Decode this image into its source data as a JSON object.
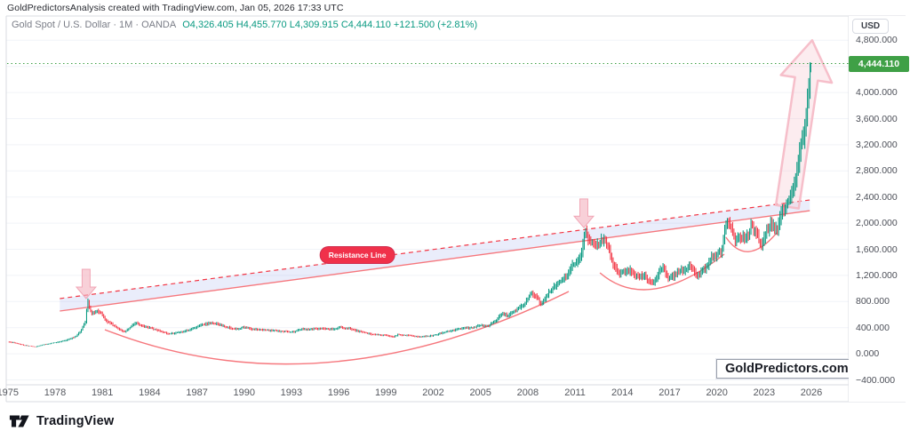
{
  "attribution": "GoldPredictorsAnalysis created with TradingView.com, Jan 05, 2026 17:33 UTC",
  "legend": {
    "symbol": "Gold Spot / U.S. Dollar",
    "interval": "1M",
    "exchange": "OANDA",
    "symbol_line": "Gold Spot / U.S. Dollar · 1M · OANDA",
    "values_text": "O4,326.405  H4,455.770  L4,309.915  C4,444.110  +121.500 (+2.81%)"
  },
  "axis": {
    "currency": "USD",
    "last_price_label": "4,444.110",
    "y_ticks": [
      {
        "label": "4,800.000",
        "value": 4800
      },
      {
        "label": "4,400.000",
        "value": 4400,
        "hidden": true
      },
      {
        "label": "4,000.000",
        "value": 4000
      },
      {
        "label": "3,600.000",
        "value": 3600
      },
      {
        "label": "3,200.000",
        "value": 3200
      },
      {
        "label": "2,800.000",
        "value": 2800
      },
      {
        "label": "2,400.000",
        "value": 2400
      },
      {
        "label": "2,000.000",
        "value": 2000
      },
      {
        "label": "1,600.000",
        "value": 1600
      },
      {
        "label": "1,200.000",
        "value": 1200
      },
      {
        "label": "800.000",
        "value": 800
      },
      {
        "label": "400.000",
        "value": 400
      },
      {
        "label": "0.000",
        "value": 0
      },
      {
        "label": "−400.000",
        "value": -400
      }
    ],
    "x_ticks": [
      {
        "label": "1975",
        "year": 1975
      },
      {
        "label": "1978",
        "year": 1978
      },
      {
        "label": "1981",
        "year": 1981
      },
      {
        "label": "1984",
        "year": 1984
      },
      {
        "label": "1987",
        "year": 1987
      },
      {
        "label": "1990",
        "year": 1990
      },
      {
        "label": "1993",
        "year": 1993
      },
      {
        "label": "1996",
        "year": 1996
      },
      {
        "label": "1999",
        "year": 1999
      },
      {
        "label": "2002",
        "year": 2002
      },
      {
        "label": "2005",
        "year": 2005
      },
      {
        "label": "2008",
        "year": 2008
      },
      {
        "label": "2011",
        "year": 2011
      },
      {
        "label": "2014",
        "year": 2014
      },
      {
        "label": "2017",
        "year": 2017
      },
      {
        "label": "2020",
        "year": 2020
      },
      {
        "label": "2023",
        "year": 2023
      },
      {
        "label": "2026",
        "year": 2026
      }
    ]
  },
  "watermark": "GoldPredictors.com",
  "footer": {
    "brand": "TradingView"
  },
  "colors": {
    "up": "#089981",
    "down": "#f23645",
    "badge_green": "#3fa046",
    "price_line_green": "#3fa046",
    "legend_green": "#089981",
    "annotation_red": "#f23645",
    "annotation_salmon": "#f6777d",
    "resistance_badge_bg": "#f0314a",
    "channel_fill": "rgba(106,125,229,0.14)",
    "arrow_fill": "rgba(244,179,192,0.62)",
    "arrow_stroke": "rgba(239,160,176,0.9)",
    "big_arrow_fill": "rgba(246,188,199,0.28)",
    "big_arrow_stroke": "rgba(246,188,199,0.95)",
    "grid": "#f1f3f8",
    "frame": "#d8dbe2"
  },
  "chart_data": {
    "type": "candlestick",
    "title": "Gold Spot / U.S. Dollar",
    "interval": "1M",
    "exchange": "OANDA",
    "ohlc": {
      "open": 4326.405,
      "high": 4455.77,
      "low": 4309.915,
      "close": 4444.11,
      "change": 121.5,
      "change_pct": 2.81
    },
    "x_range": [
      1974.8,
      2026.3
    ],
    "y_range": [
      -400,
      4800
    ],
    "y_tick_step": 400,
    "grid": "horizontal-faint",
    "legend_position": "top-left",
    "series_points": [
      [
        1975.0,
        185
      ],
      [
        1975.5,
        163
      ],
      [
        1976.0,
        131
      ],
      [
        1976.7,
        106
      ],
      [
        1977.2,
        136
      ],
      [
        1978.0,
        172
      ],
      [
        1978.7,
        206
      ],
      [
        1979.3,
        262
      ],
      [
        1979.7,
        372
      ],
      [
        1979.95,
        512
      ],
      [
        1980.05,
        835
      ],
      [
        1980.3,
        598
      ],
      [
        1980.6,
        652
      ],
      [
        1980.9,
        618
      ],
      [
        1981.3,
        498
      ],
      [
        1981.8,
        420
      ],
      [
        1982.4,
        332
      ],
      [
        1982.75,
        402
      ],
      [
        1983.1,
        478
      ],
      [
        1983.6,
        414
      ],
      [
        1984.2,
        384
      ],
      [
        1984.9,
        330
      ],
      [
        1985.2,
        300
      ],
      [
        1985.8,
        328
      ],
      [
        1986.3,
        346
      ],
      [
        1986.8,
        398
      ],
      [
        1987.4,
        448
      ],
      [
        1987.95,
        478
      ],
      [
        1988.5,
        438
      ],
      [
        1989.1,
        394
      ],
      [
        1989.6,
        374
      ],
      [
        1989.95,
        408
      ],
      [
        1990.5,
        372
      ],
      [
        1991.1,
        368
      ],
      [
        1991.8,
        356
      ],
      [
        1992.5,
        341
      ],
      [
        1993.2,
        334
      ],
      [
        1993.6,
        374
      ],
      [
        1994.3,
        382
      ],
      [
        1995.1,
        379
      ],
      [
        1995.9,
        387
      ],
      [
        1996.1,
        404
      ],
      [
        1996.8,
        379
      ],
      [
        1997.5,
        329
      ],
      [
        1998.2,
        294
      ],
      [
        1998.9,
        289
      ],
      [
        1999.5,
        257
      ],
      [
        1999.75,
        299
      ],
      [
        2000.1,
        287
      ],
      [
        2000.8,
        271
      ],
      [
        2001.3,
        261
      ],
      [
        2001.9,
        277
      ],
      [
        2002.5,
        314
      ],
      [
        2003.1,
        349
      ],
      [
        2003.9,
        389
      ],
      [
        2004.5,
        394
      ],
      [
        2004.95,
        434
      ],
      [
        2005.5,
        429
      ],
      [
        2005.95,
        509
      ],
      [
        2006.4,
        618
      ],
      [
        2006.7,
        588
      ],
      [
        2007.2,
        663
      ],
      [
        2007.7,
        738
      ],
      [
        2008.2,
        922
      ],
      [
        2008.6,
        868
      ],
      [
        2008.85,
        748
      ],
      [
        2009.2,
        898
      ],
      [
        2009.8,
        1048
      ],
      [
        2010.4,
        1178
      ],
      [
        2010.95,
        1388
      ],
      [
        2011.4,
        1508
      ],
      [
        2011.65,
        1882
      ],
      [
        2011.9,
        1722
      ],
      [
        2012.3,
        1648
      ],
      [
        2012.75,
        1738
      ],
      [
        2013.1,
        1658
      ],
      [
        2013.35,
        1398
      ],
      [
        2013.9,
        1228
      ],
      [
        2014.4,
        1288
      ],
      [
        2014.9,
        1178
      ],
      [
        2015.4,
        1188
      ],
      [
        2015.95,
        1062
      ],
      [
        2016.3,
        1238
      ],
      [
        2016.6,
        1328
      ],
      [
        2016.95,
        1148
      ],
      [
        2017.5,
        1248
      ],
      [
        2017.95,
        1288
      ],
      [
        2018.3,
        1338
      ],
      [
        2018.75,
        1188
      ],
      [
        2019.2,
        1288
      ],
      [
        2019.7,
        1478
      ],
      [
        2019.95,
        1514
      ],
      [
        2020.3,
        1598
      ],
      [
        2020.6,
        2028
      ],
      [
        2020.95,
        1888
      ],
      [
        2021.2,
        1738
      ],
      [
        2021.5,
        1808
      ],
      [
        2021.95,
        1798
      ],
      [
        2022.2,
        1978
      ],
      [
        2022.55,
        1818
      ],
      [
        2022.8,
        1642
      ],
      [
        2023.1,
        1868
      ],
      [
        2023.4,
        1978
      ],
      [
        2023.8,
        1888
      ],
      [
        2023.95,
        2058
      ],
      [
        2024.3,
        2228
      ],
      [
        2024.6,
        2388
      ],
      [
        2024.8,
        2548
      ],
      [
        2024.95,
        2628
      ],
      [
        2025.1,
        2858
      ],
      [
        2025.25,
        3078
      ],
      [
        2025.4,
        3278
      ],
      [
        2025.55,
        3378
      ],
      [
        2025.7,
        3748
      ],
      [
        2025.8,
        3998
      ],
      [
        2025.9,
        4248
      ],
      [
        2025.96,
        4444
      ]
    ],
    "annotations": {
      "channel": {
        "name": "Resistance Line",
        "label_pos": [
          1997.18,
          1512
        ],
        "top_line": {
          "from": [
            1978.3,
            845
          ],
          "to": [
            2025.9,
            2355
          ],
          "style": "dashed"
        },
        "bottom_line": {
          "from": [
            1978.3,
            654
          ],
          "to": [
            2025.9,
            2191
          ],
          "style": "solid"
        }
      },
      "cups": [
        {
          "start": [
            1981.16,
            369
          ],
          "apex": [
            1995.37,
            -130
          ],
          "end": [
            2010.6,
            954
          ]
        },
        {
          "start": [
            2012.58,
            1239
          ],
          "apex": [
            2016.07,
            994
          ],
          "end": [
            2020.47,
            1525
          ]
        },
        {
          "start": [
            2020.58,
            1784
          ],
          "apex": [
            2022.05,
            1565
          ],
          "end": [
            2023.8,
            1851
          ]
        }
      ],
      "arrows_down": [
        {
          "x": 1979.97,
          "from_price": 1294,
          "to_price": 845
        },
        {
          "x": 2011.56,
          "from_price": 2370,
          "to_price": 1930
        }
      ],
      "arrow_up": {
        "from": [
          2024.47,
          2250
        ],
        "to": [
          2026.05,
          4800
        ]
      },
      "price_line": 4444.11
    }
  }
}
